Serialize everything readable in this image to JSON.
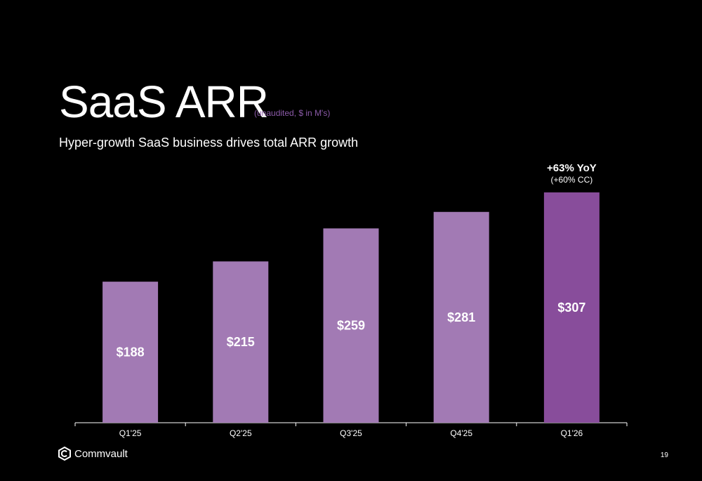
{
  "slide": {
    "title": "SaaS ARR",
    "title_note": "(unaudited, $ in M's)",
    "subtitle": "Hyper-growth SaaS business drives total ARR growth",
    "brand": "Commvault",
    "page_number": "19"
  },
  "colors": {
    "background": "#000000",
    "bar": "#a27ab4",
    "bar_highlight": "#884d9b",
    "note": "#8b5aa8",
    "text": "#ffffff"
  },
  "chart_data": {
    "type": "bar",
    "categories": [
      "Q1'25",
      "Q2'25",
      "Q3'25",
      "Q4'25",
      "Q1'26"
    ],
    "values": [
      188,
      215,
      259,
      281,
      307
    ],
    "data_labels": [
      "$188",
      "$215",
      "$259",
      "$281",
      "$307"
    ],
    "highlight_index": 4,
    "annotation": {
      "category": "Q1'26",
      "text": "+63% YoY",
      "subtext": "(+60% CC)"
    },
    "unit": "$ in M's",
    "ylim": [
      0,
      310
    ],
    "grid": false,
    "legend": "none"
  }
}
